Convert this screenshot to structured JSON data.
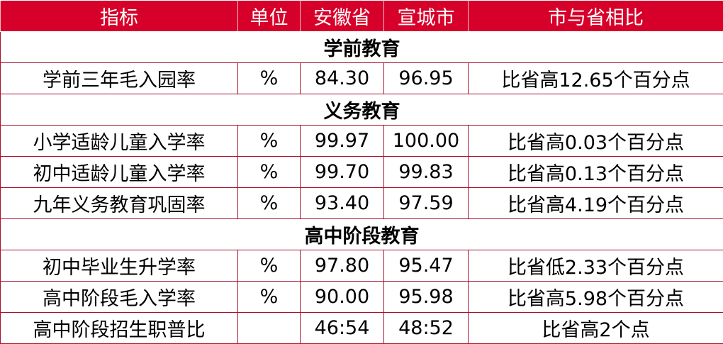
{
  "header": [
    "指标",
    "单位",
    "安徽省",
    "宣城市",
    "市与省相比"
  ],
  "sections": [
    {
      "title": "学前教育",
      "rows": [
        [
          "学前三年毛入园率",
          "%",
          "84.30",
          "96.95",
          "比省高12.65个百分点"
        ]
      ]
    },
    {
      "title": "义务教育",
      "rows": [
        [
          "小学适龄儿童入学率",
          "%",
          "99.97",
          "100.00",
          "比省高0.03个百分点"
        ],
        [
          "初中适龄儿童入学率",
          "%",
          "99.70",
          "99.83",
          "比省高0.13个百分点"
        ],
        [
          "九年义务教育巩固率",
          "%",
          "93.40",
          "97.59",
          "比省高4.19个百分点"
        ]
      ]
    },
    {
      "title": "高中阶段教育",
      "rows": [
        [
          "初中毕业生升学率",
          "%",
          "97.80",
          "95.47",
          "比省低2.33个百分点"
        ],
        [
          "高中阶段毛入学率",
          "%",
          "90.00",
          "95.98",
          "比省高5.98个百分点"
        ],
        [
          "高中阶段招生职普比",
          "",
          "46:54",
          "48:52",
          "比省高2个点"
        ]
      ]
    }
  ],
  "colors": {
    "header_bg": "#d7002a",
    "border": "#a8102e"
  }
}
